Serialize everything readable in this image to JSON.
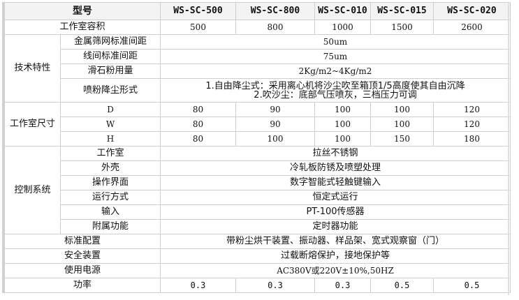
{
  "header": {
    "model_label": "型号",
    "models": [
      "WS-SC-500",
      "WS-SC-800",
      "WS-SC-010",
      "WS-SC-015",
      "WS-SC-020"
    ]
  },
  "capacity": {
    "label": "工作室容积",
    "values": [
      "500",
      "800",
      "1000",
      "1500",
      "2600"
    ]
  },
  "tech": {
    "group": "技术特性",
    "rows": [
      {
        "label": "金属筛网标准间距",
        "value": "50um"
      },
      {
        "label": "线间标准间距",
        "value": "75um"
      },
      {
        "label": "滑石粉用量",
        "value": "2Kg/m2~4Kg/m2"
      },
      {
        "label": "喷粉降尘形式",
        "line1": "1.自由降尘式：采用离心机将沙尘吹至箱顶1/5高度使其自由沉降",
        "line2": "2.吹沙尘：底部气压喷灰，三档压力可调"
      }
    ]
  },
  "size": {
    "group": "工作室尺寸",
    "rows": [
      {
        "label": "D",
        "values": [
          "80",
          "90",
          "100",
          "100",
          "120"
        ]
      },
      {
        "label": "W",
        "values": [
          "80",
          "90",
          "100",
          "100",
          "120"
        ]
      },
      {
        "label": "H",
        "values": [
          "80",
          "100",
          "100",
          "150",
          "180"
        ]
      }
    ]
  },
  "control": {
    "group": "控制系统",
    "rows": [
      {
        "label": "工作室",
        "value": "拉丝不锈钢"
      },
      {
        "label": "外壳",
        "value": "冷轧板防锈及喷塑处理"
      },
      {
        "label": "操作界面",
        "value": "数字智能式轻触键输入"
      },
      {
        "label": "运行方式",
        "value": "恒定式运行"
      },
      {
        "label": "输入",
        "value": "PT-100传感器"
      },
      {
        "label": "附属功能",
        "value": "定时器功能"
      }
    ]
  },
  "standard": {
    "label": "标准配置",
    "value": "带粉尘烘干装置、振动器、样品架、宽式观察窗（门）"
  },
  "safety": {
    "label": "安全装置",
    "value": "过载断熔保护，接地保护等"
  },
  "power_supply": {
    "label": "使用电源",
    "value": "AC380V或220V±10%,50HZ"
  },
  "power": {
    "label": "功率",
    "values": [
      "0.3",
      "0.3",
      "0.3",
      "0.5",
      "0.5"
    ]
  }
}
